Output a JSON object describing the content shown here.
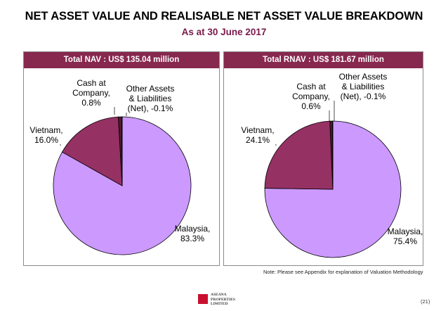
{
  "title": "NET ASSET VALUE AND REALISABLE NET ASSET VALUE BREAKDOWN",
  "subtitle": "As at 30 June 2017",
  "colors": {
    "malaysia": "#cc99ff",
    "vietnam": "#963164",
    "cash": "#4e1a2e",
    "other": "#2a0d18",
    "header": "#87284f"
  },
  "chart_data": [
    {
      "type": "pie",
      "title": "Total NAV : US$ 135.04 million",
      "slices": [
        {
          "label_lines": [
            "Malaysia,",
            "83.3%"
          ],
          "value": 83.3
        },
        {
          "label_lines": [
            "Vietnam,",
            "16.0%"
          ],
          "value": 16.0
        },
        {
          "label_lines": [
            "Cash at",
            "Company,",
            "0.8%"
          ],
          "value": 0.8
        },
        {
          "label_lines": [
            "Other Assets",
            "& Liabilities",
            "(Net), -0.1%"
          ],
          "value": -0.1
        }
      ]
    },
    {
      "type": "pie",
      "title": "Total RNAV : US$ 181.67 million",
      "slices": [
        {
          "label_lines": [
            "Malaysia,",
            "75.4%"
          ],
          "value": 75.4
        },
        {
          "label_lines": [
            "Vietnam,",
            "24.1%"
          ],
          "value": 24.1
        },
        {
          "label_lines": [
            "Cash at",
            "Company,",
            "0.6%"
          ],
          "value": 0.6
        },
        {
          "label_lines": [
            "Other Assets",
            "& Liabilities",
            "(Net), -0.1%"
          ],
          "value": -0.1
        }
      ]
    }
  ],
  "note": "Note: Please see Appendix for explanation of Valuation Methodology",
  "logo": {
    "line1": "ASEANA",
    "line2": "PROPERTIES",
    "line3": "LIMITED"
  },
  "page_number": "(21)"
}
